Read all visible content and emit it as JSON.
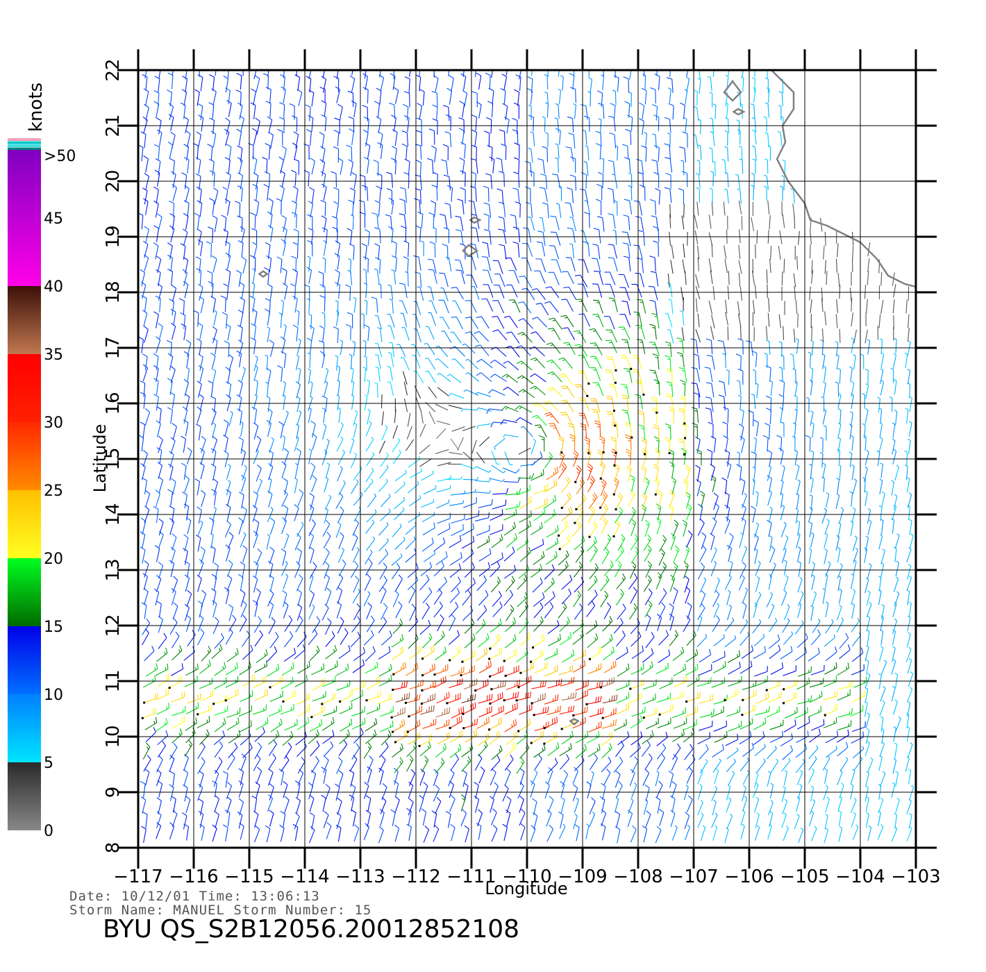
{
  "chart_data": {
    "type": "map",
    "xlabel": "Longitude",
    "ylabel": "Latitude",
    "xlim": [
      -117,
      -103
    ],
    "ylim": [
      8,
      22
    ],
    "x_ticks": [
      -117,
      -116,
      -115,
      -114,
      -113,
      -112,
      -111,
      -110,
      -109,
      -108,
      -107,
      -106,
      -105,
      -104,
      -103
    ],
    "x_tick_labels": [
      "−117",
      "−116",
      "−115",
      "−114",
      "−113",
      "−112",
      "−111",
      "−110",
      "−109",
      "−108",
      "−107",
      "−106",
      "−105",
      "−104",
      "−103"
    ],
    "y_ticks": [
      8,
      9,
      10,
      11,
      12,
      13,
      14,
      15,
      16,
      17,
      18,
      19,
      20,
      21,
      22
    ],
    "y_tick_labels": [
      "8",
      "9",
      "10",
      "11",
      "12",
      "13",
      "14",
      "15",
      "16",
      "17",
      "18",
      "19",
      "20",
      "21",
      "22"
    ],
    "grid": true,
    "wind_barbs": true,
    "storm_center": [
      -109.8,
      15.1
    ],
    "coastline": [
      [
        -105.6,
        22.0
      ],
      [
        -105.4,
        21.8
      ],
      [
        -105.2,
        21.6
      ],
      [
        -105.2,
        21.3
      ],
      [
        -105.4,
        21.0
      ],
      [
        -105.35,
        20.7
      ],
      [
        -105.5,
        20.4
      ],
      [
        -105.3,
        20.0
      ],
      [
        -105.0,
        19.6
      ],
      [
        -104.9,
        19.3
      ],
      [
        -104.6,
        19.2
      ],
      [
        -104.3,
        19.05
      ],
      [
        -104.0,
        18.9
      ],
      [
        -103.7,
        18.6
      ],
      [
        -103.5,
        18.3
      ],
      [
        -103.2,
        18.15
      ],
      [
        -103.0,
        18.1
      ]
    ],
    "islands": [
      [
        [
          -106.3,
          21.8
        ],
        [
          -106.15,
          21.6
        ],
        [
          -106.3,
          21.45
        ],
        [
          -106.45,
          21.6
        ]
      ],
      [
        [
          -106.2,
          21.3
        ],
        [
          -106.1,
          21.25
        ],
        [
          -106.2,
          21.2
        ],
        [
          -106.28,
          21.25
        ]
      ],
      [
        [
          -110.95,
          19.35
        ],
        [
          -110.85,
          19.3
        ],
        [
          -110.95,
          19.25
        ],
        [
          -111.02,
          19.3
        ]
      ],
      [
        [
          -111.05,
          18.85
        ],
        [
          -110.9,
          18.75
        ],
        [
          -111.05,
          18.65
        ],
        [
          -111.15,
          18.75
        ]
      ],
      [
        [
          -114.75,
          18.38
        ],
        [
          -114.68,
          18.33
        ],
        [
          -114.75,
          18.28
        ],
        [
          -114.82,
          18.33
        ]
      ],
      [
        [
          -109.15,
          10.32
        ],
        [
          -109.08,
          10.28
        ],
        [
          -109.15,
          10.22
        ],
        [
          -109.22,
          10.28
        ]
      ]
    ]
  },
  "legend": {
    "unit": "knots",
    "labels": [
      ">50",
      "45",
      "40",
      "35",
      "30",
      "25",
      "20",
      "15",
      "10",
      "5",
      "0"
    ],
    "bands": [
      {
        "min": 0,
        "max": 5,
        "from": "#888888",
        "to": "#2a2a2a"
      },
      {
        "min": 5,
        "max": 10,
        "from": "#00e5ff",
        "to": "#0080ff"
      },
      {
        "min": 10,
        "max": 15,
        "from": "#0070ff",
        "to": "#0000e8"
      },
      {
        "min": 15,
        "max": 20,
        "from": "#006a00",
        "to": "#00ff20"
      },
      {
        "min": 20,
        "max": 25,
        "from": "#ffff20",
        "to": "#ffc000"
      },
      {
        "min": 25,
        "max": 30,
        "from": "#ff8c00",
        "to": "#ff2800"
      },
      {
        "min": 30,
        "max": 35,
        "from": "#ff2000",
        "to": "#ff0000"
      },
      {
        "min": 35,
        "max": 40,
        "from": "#c07850",
        "to": "#3c1008"
      },
      {
        "min": 40,
        "max": 50,
        "from": "#ff00e8",
        "to": "#8000c0"
      },
      {
        "min": 50,
        "max": 51,
        "from": "#6000c0",
        "to": "#6000c0"
      }
    ],
    "top_swatch_colors": [
      "#f0a0b8",
      "#00c8c8",
      "#40e0e0",
      "#008080"
    ]
  },
  "footer": {
    "date_line": "Date: 10/12/01   Time: 13:06:13",
    "storm_line": "Storm Name: MANUEL   Storm Number: 15",
    "product_title": "BYU QS_S2B12056.20012852108"
  }
}
